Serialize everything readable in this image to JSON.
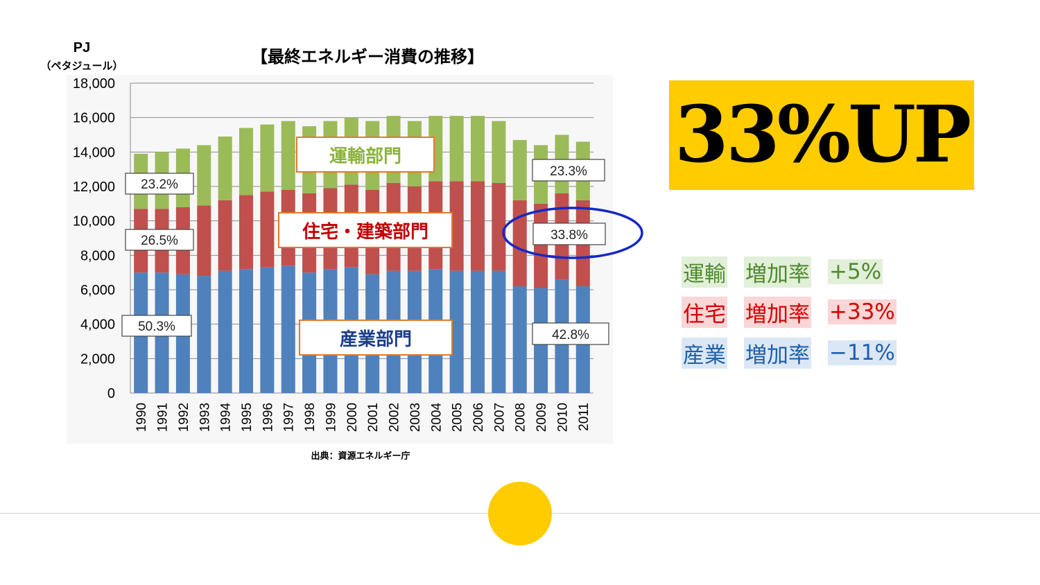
{
  "chart_data": {
    "type": "bar",
    "stacked": true,
    "title": "【最終エネルギー消費の推移】",
    "ylabel": "PJ",
    "ylabel_sub": "（ペタジュール）",
    "ylim": [
      0,
      18000
    ],
    "yticks": [
      "0",
      "2,000",
      "4,000",
      "6,000",
      "8,000",
      "10,000",
      "12,000",
      "14,000",
      "16,000",
      "18,000"
    ],
    "grid": true,
    "categories": [
      "1990",
      "1991",
      "1992",
      "1993",
      "1994",
      "1995",
      "1996",
      "1997",
      "1998",
      "1999",
      "2000",
      "2001",
      "2002",
      "2003",
      "2004",
      "2005",
      "2006",
      "2007",
      "2008",
      "2009",
      "2010",
      "2011"
    ],
    "series": [
      {
        "name": "産業部門",
        "color": "#4f81bd",
        "values": [
          7000,
          7000,
          6900,
          6800,
          7100,
          7200,
          7300,
          7400,
          7000,
          7200,
          7300,
          6900,
          7100,
          7100,
          7200,
          7100,
          7100,
          7100,
          6200,
          6100,
          6600,
          6200
        ]
      },
      {
        "name": "住宅・建築部門",
        "color": "#c0504d",
        "values": [
          3700,
          3700,
          3900,
          4100,
          4100,
          4300,
          4400,
          4400,
          4600,
          4700,
          4800,
          4900,
          5100,
          4900,
          5100,
          5200,
          5200,
          5100,
          5000,
          4900,
          5000,
          5000
        ]
      },
      {
        "name": "運輸部門",
        "color": "#9bbb59",
        "values": [
          3200,
          3300,
          3400,
          3500,
          3700,
          3900,
          3900,
          4000,
          3900,
          3900,
          3900,
          4000,
          3900,
          3800,
          3800,
          3800,
          3800,
          3600,
          3500,
          3400,
          3400,
          3400
        ]
      }
    ],
    "share_labels": {
      "left": [
        "23.2%",
        "26.5%",
        "50.3%"
      ],
      "right": [
        "23.3%",
        "33.8%",
        "42.8%"
      ]
    },
    "source": "出典：資源エネルギー庁"
  },
  "headline": "33%UP",
  "rates": [
    {
      "sector": "運輸",
      "label": "増加率",
      "value": "+5%"
    },
    {
      "sector": "住宅",
      "label": "増加率",
      "value": "+33%"
    },
    {
      "sector": "産業",
      "label": "増加率",
      "value": "−11%"
    }
  ],
  "colors": {
    "accent": "#ffcc00",
    "circle": "#1428c8",
    "transport": "#4e8a2e",
    "housing": "#d40000",
    "industry": "#1f5fa8"
  }
}
